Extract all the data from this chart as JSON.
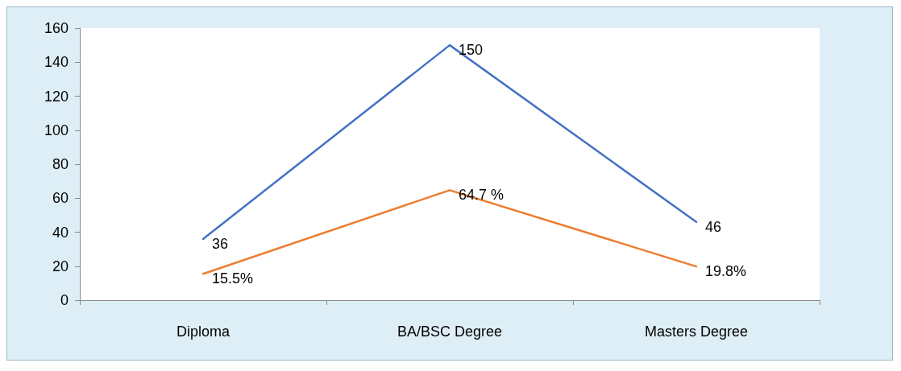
{
  "chart_data": {
    "type": "line",
    "categories": [
      "Diploma",
      "BA/BSC Degree",
      "Masters Degree"
    ],
    "series": [
      {
        "color": "#4472c4",
        "values": [
          36,
          150,
          46
        ],
        "value_labels": [
          "36",
          "150",
          "46"
        ]
      },
      {
        "color": "#ed7d31",
        "values": [
          15.5,
          64.7,
          19.8
        ],
        "value_labels": [
          "15.5%",
          "64.7 %",
          "19.8%"
        ]
      }
    ],
    "ylim": [
      0,
      160
    ],
    "yticks": [
      0,
      20,
      40,
      60,
      80,
      100,
      120,
      140,
      160
    ],
    "grid": false,
    "marker": "none",
    "line_style": "solid"
  }
}
